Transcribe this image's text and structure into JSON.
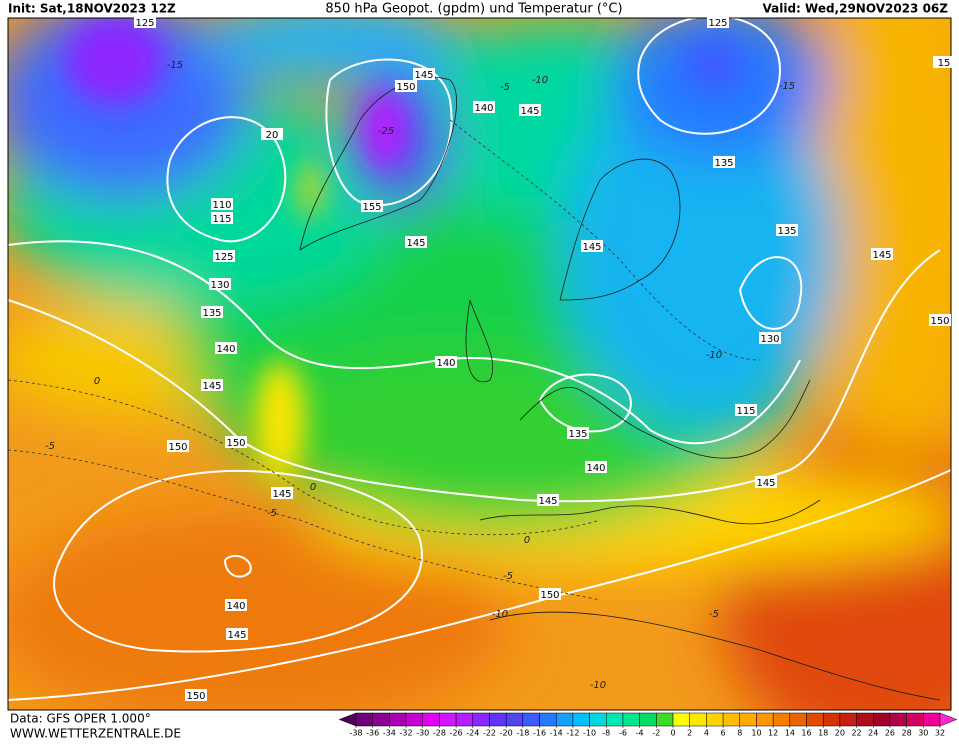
{
  "header": {
    "init": "Init: Sat,18NOV2023 12Z",
    "title": "850 hPa Geopot. (gpdm) und Temperatur (°C)",
    "valid": "Valid: Wed,29NOV2023 06Z"
  },
  "footer": {
    "data_source": "Data: GFS OPER 1.000°",
    "website": "WWW.WETTERZENTRALE.DE"
  },
  "contour_labels": [
    125,
    125,
    145,
    150,
    140,
    145,
    20,
    110,
    115,
    155,
    135,
    145,
    145,
    135,
    125,
    145,
    130,
    135,
    130,
    150,
    140,
    140,
    145,
    115,
    135,
    150,
    150,
    140,
    145,
    145,
    145,
    150,
    140,
    145,
    150,
    15
  ],
  "temperature_labels": [
    -15,
    -15,
    -10,
    -5,
    -25,
    -10,
    0,
    -5,
    0,
    -5,
    0,
    -5,
    -10,
    -5,
    -10
  ],
  "colorbar": {
    "ticks": [
      -38,
      -36,
      -34,
      -32,
      -30,
      -28,
      -26,
      -24,
      -22,
      -20,
      -18,
      -16,
      -14,
      -12,
      -10,
      -8,
      -6,
      -4,
      -2,
      0,
      2,
      4,
      6,
      8,
      10,
      12,
      14,
      16,
      18,
      20,
      22,
      24,
      26,
      28,
      30,
      32
    ],
    "colors": [
      "#50005a",
      "#6e0078",
      "#8c0096",
      "#aa00b4",
      "#c800d2",
      "#e600f0",
      "#d214ff",
      "#b41eff",
      "#8c28ff",
      "#6432ff",
      "#5046f0",
      "#3c5aff",
      "#2878ff",
      "#14a0ff",
      "#00c0ff",
      "#00d8e0",
      "#00e6b4",
      "#00e68c",
      "#00dc64",
      "#3cdc28",
      "#ffff00",
      "#ffe600",
      "#ffd200",
      "#ffbe00",
      "#ffaa00",
      "#ff9600",
      "#f57d00",
      "#eb6400",
      "#e14b00",
      "#d73200",
      "#c81e14",
      "#b40a1e",
      "#a00028",
      "#b40046",
      "#d20064",
      "#f00096",
      "#ff28d2"
    ]
  }
}
